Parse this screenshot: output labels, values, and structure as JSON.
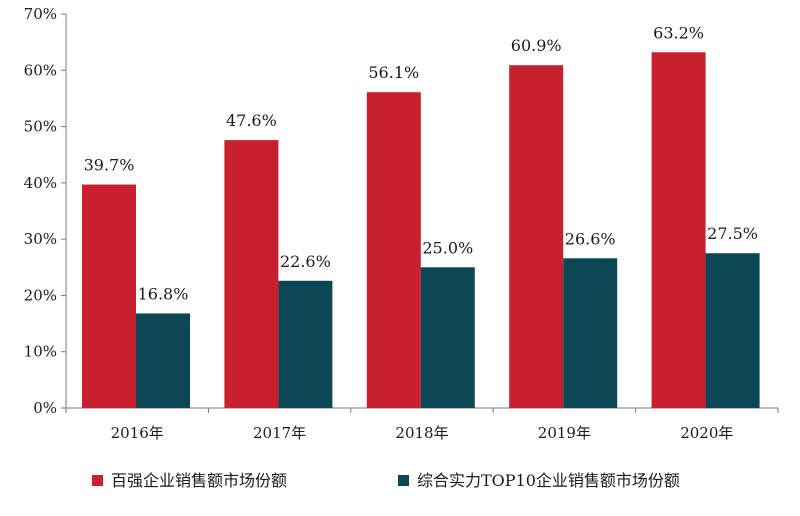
{
  "chart_data": {
    "type": "bar",
    "categories": [
      "2016年",
      "2017年",
      "2018年",
      "2019年",
      "2020年"
    ],
    "series": [
      {
        "name": "百强企业销售额市场份额",
        "values": [
          39.7,
          47.6,
          56.1,
          60.9,
          63.2
        ],
        "color": "#c8202f"
      },
      {
        "name": "综合实力TOP10企业销售额市场份额",
        "values": [
          16.8,
          22.6,
          25.0,
          26.6,
          27.5
        ],
        "color": "#0d4655"
      }
    ],
    "ylim": [
      0,
      70
    ],
    "yticks": [
      "0%",
      "10%",
      "20%",
      "30%",
      "40%",
      "50%",
      "60%",
      "70%"
    ],
    "data_labels": [
      [
        "39.7%",
        "47.6%",
        "56.1%",
        "60.9%",
        "63.2%"
      ],
      [
        "16.8%",
        "22.6%",
        "25.0%",
        "26.6%",
        "27.5%"
      ]
    ],
    "grid": false,
    "legend_position": "bottom"
  }
}
